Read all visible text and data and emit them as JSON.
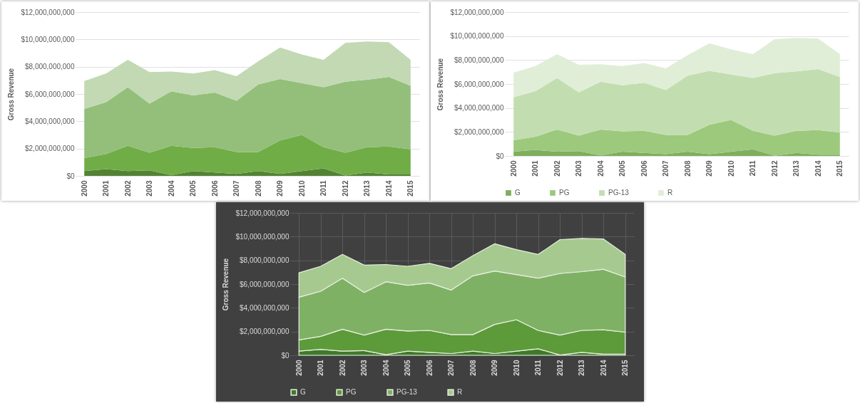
{
  "chart_data": [
    {
      "type": "area",
      "stacked": true,
      "ylabel": "Gross Revenue",
      "categories": [
        "2000",
        "2001",
        "2002",
        "2003",
        "2004",
        "2005",
        "2006",
        "2007",
        "2008",
        "2009",
        "2010",
        "2011",
        "2012",
        "2013",
        "2014",
        "2015"
      ],
      "ylim": [
        0,
        12000000000
      ],
      "yticks": [
        {
          "value": 0,
          "label": "$0"
        },
        {
          "value": 2000000000,
          "label": "$2,000,000,000"
        },
        {
          "value": 4000000000,
          "label": "$4,000,000,000"
        },
        {
          "value": 6000000000,
          "label": "$6,000,000,000"
        },
        {
          "value": 8000000000,
          "label": "$8,000,000,000"
        },
        {
          "value": 10000000000,
          "label": "$10,000,000,000"
        },
        {
          "value": 12000000000,
          "label": "$12,000,000,000"
        }
      ],
      "grid": "y",
      "legend": false,
      "series": [
        {
          "color": "#548235",
          "values": [
            350000000,
            500000000,
            350000000,
            400000000,
            50000000,
            350000000,
            250000000,
            150000000,
            350000000,
            150000000,
            350000000,
            550000000,
            20000000,
            250000000,
            100000000,
            100000000
          ]
        },
        {
          "color": "#70ad47",
          "values": [
            950000000,
            1100000000,
            1850000000,
            1300000000,
            2150000000,
            1700000000,
            1850000000,
            1600000000,
            1400000000,
            2450000000,
            2650000000,
            1550000000,
            1680000000,
            1850000000,
            2050000000,
            1850000000
          ]
        },
        {
          "color": "#93bf7a",
          "values": [
            3600000000,
            3800000000,
            4300000000,
            3600000000,
            4000000000,
            3850000000,
            4000000000,
            3750000000,
            4950000000,
            4500000000,
            3800000000,
            4400000000,
            5200000000,
            4950000000,
            5100000000,
            4650000000
          ]
        },
        {
          "color": "#c2d9b4",
          "values": [
            2050000000,
            2100000000,
            2000000000,
            2300000000,
            1450000000,
            1600000000,
            1650000000,
            1800000000,
            1700000000,
            2300000000,
            2100000000,
            2000000000,
            2850000000,
            2800000000,
            2550000000,
            1900000000
          ]
        }
      ]
    },
    {
      "type": "area",
      "stacked": true,
      "ylabel": "Gross Revenue",
      "categories": [
        "2000",
        "2001",
        "2002",
        "2003",
        "2004",
        "2005",
        "2006",
        "2007",
        "2008",
        "2009",
        "2010",
        "2011",
        "2012",
        "2013",
        "2014",
        "2015"
      ],
      "ylim": [
        0,
        12000000000
      ],
      "yticks": [
        {
          "value": 0,
          "label": "$0"
        },
        {
          "value": 2000000000,
          "label": "$2,000,000,000"
        },
        {
          "value": 4000000000,
          "label": "$4,000,000,000"
        },
        {
          "value": 6000000000,
          "label": "$6,000,000,000"
        },
        {
          "value": 8000000000,
          "label": "$8,000,000,000"
        },
        {
          "value": 10000000000,
          "label": "$10,000,000,000"
        },
        {
          "value": 12000000000,
          "label": "$12,000,000,000"
        }
      ],
      "grid": true,
      "legend": "bottom",
      "series": [
        {
          "name": "G",
          "color": "#3f7a2a",
          "values": [
            350000000,
            500000000,
            350000000,
            400000000,
            50000000,
            350000000,
            250000000,
            150000000,
            350000000,
            150000000,
            350000000,
            550000000,
            20000000,
            250000000,
            100000000,
            100000000
          ]
        },
        {
          "name": "PG",
          "color": "#5d9a3a",
          "values": [
            950000000,
            1100000000,
            1850000000,
            1300000000,
            2150000000,
            1700000000,
            1850000000,
            1600000000,
            1400000000,
            2450000000,
            2650000000,
            1550000000,
            1680000000,
            1850000000,
            2050000000,
            1850000000
          ]
        },
        {
          "name": "PG-13",
          "color": "#7fb165",
          "values": [
            3600000000,
            3800000000,
            4300000000,
            3600000000,
            4000000000,
            3850000000,
            4000000000,
            3750000000,
            4950000000,
            4500000000,
            3800000000,
            4400000000,
            5200000000,
            4950000000,
            5100000000,
            4650000000
          ]
        },
        {
          "name": "R",
          "color": "#a6c98f",
          "values": [
            2050000000,
            2100000000,
            2000000000,
            2300000000,
            1450000000,
            1600000000,
            1650000000,
            1800000000,
            1700000000,
            2300000000,
            2100000000,
            2000000000,
            2850000000,
            2800000000,
            2550000000,
            1900000000
          ]
        }
      ]
    },
    {
      "type": "area",
      "stacked": true,
      "ylabel": "Gross Revenue",
      "categories": [
        "2000",
        "2001",
        "2002",
        "2003",
        "2004",
        "2005",
        "2006",
        "2007",
        "2008",
        "2009",
        "2010",
        "2011",
        "2012",
        "2013",
        "2014",
        "2015"
      ],
      "ylim": [
        0,
        12000000000
      ],
      "yticks": [
        {
          "value": 0,
          "label": "$0"
        },
        {
          "value": 2000000000,
          "label": "$2,000,000,000"
        },
        {
          "value": 4000000000,
          "label": "$4,000,000,000"
        },
        {
          "value": 6000000000,
          "label": "$6,000,000,000"
        },
        {
          "value": 8000000000,
          "label": "$8,000,000,000"
        },
        {
          "value": 10000000000,
          "label": "$10,000,000,000"
        },
        {
          "value": 12000000000,
          "label": "$12,000,000,000"
        }
      ],
      "grid": "y",
      "legend": "bottom",
      "series": [
        {
          "name": "G",
          "color": "#7fae5e",
          "values": [
            350000000,
            500000000,
            350000000,
            400000000,
            50000000,
            350000000,
            250000000,
            150000000,
            350000000,
            150000000,
            350000000,
            550000000,
            20000000,
            250000000,
            100000000,
            100000000
          ]
        },
        {
          "name": "PG",
          "color": "#9cc97c",
          "values": [
            950000000,
            1100000000,
            1850000000,
            1300000000,
            2150000000,
            1700000000,
            1850000000,
            1600000000,
            1400000000,
            2450000000,
            2650000000,
            1550000000,
            1680000000,
            1850000000,
            2050000000,
            1850000000
          ]
        },
        {
          "name": "PG-13",
          "color": "#c2deb0",
          "values": [
            3600000000,
            3800000000,
            4300000000,
            3600000000,
            4000000000,
            3850000000,
            4000000000,
            3750000000,
            4950000000,
            4500000000,
            3800000000,
            4400000000,
            5200000000,
            4950000000,
            5100000000,
            4650000000
          ]
        },
        {
          "name": "R",
          "color": "#e0eed8",
          "values": [
            2050000000,
            2100000000,
            2000000000,
            2300000000,
            1450000000,
            1600000000,
            1650000000,
            1800000000,
            1700000000,
            2300000000,
            2100000000,
            2000000000,
            2850000000,
            2800000000,
            2550000000,
            1900000000
          ]
        }
      ]
    }
  ]
}
